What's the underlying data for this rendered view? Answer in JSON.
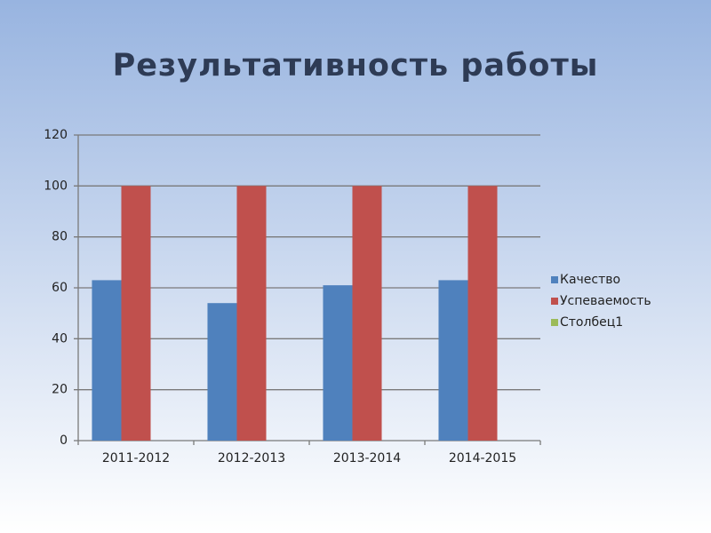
{
  "chart_data": {
    "type": "bar",
    "title": "Результативность работы",
    "categories": [
      "2011-2012",
      "2012-2013",
      "2013-2014",
      "2014-2015"
    ],
    "series": [
      {
        "name": "Качество",
        "color": "#4f81bd",
        "values": [
          63,
          54,
          61,
          63
        ]
      },
      {
        "name": "Успеваемость",
        "color": "#c0504d",
        "values": [
          100,
          100,
          100,
          100
        ]
      },
      {
        "name": "Столбец1",
        "color": "#9bbb59",
        "values": [
          null,
          null,
          null,
          null
        ]
      }
    ],
    "ylim": [
      0,
      120
    ],
    "yticks": [
      0,
      20,
      40,
      60,
      80,
      100,
      120
    ],
    "grid": true,
    "legend": "right"
  }
}
